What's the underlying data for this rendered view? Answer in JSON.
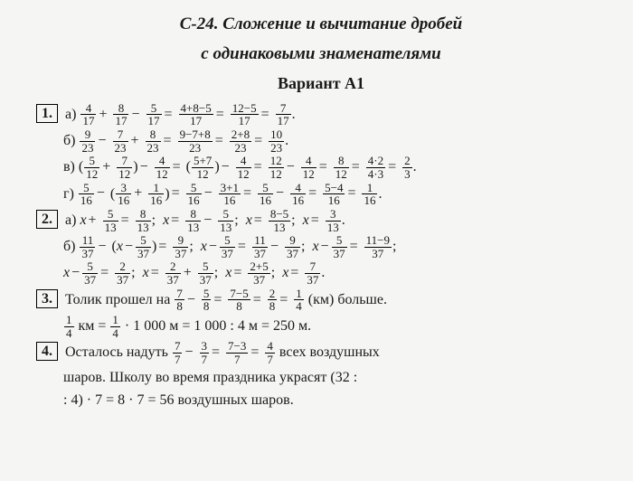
{
  "header": {
    "title_line1": "С-24. Сложение и вычитание дробей",
    "title_line2": "с одинаковыми знаменателями",
    "variant": "Вариант А1"
  },
  "p1": {
    "num": "1.",
    "a": {
      "label": "а)",
      "f1n": "4",
      "f1d": "17",
      "f2n": "8",
      "f2d": "17",
      "f3n": "5",
      "f3d": "17",
      "f4n": "4+8−5",
      "f4d": "17",
      "f5n": "12−5",
      "f5d": "17",
      "f6n": "7",
      "f6d": "17"
    },
    "b": {
      "label": "б)",
      "f1n": "9",
      "f1d": "23",
      "f2n": "7",
      "f2d": "23",
      "f3n": "8",
      "f3d": "23",
      "f4n": "9−7+8",
      "f4d": "23",
      "f5n": "2+8",
      "f5d": "23",
      "f6n": "10",
      "f6d": "23"
    },
    "v": {
      "label": "в)",
      "f1n": "5",
      "f1d": "12",
      "f2n": "7",
      "f2d": "12",
      "f3n": "4",
      "f3d": "12",
      "f4n": "5+7",
      "f4d": "12",
      "f5n": "4",
      "f5d": "12",
      "f6n": "12",
      "f6d": "12",
      "f7n": "4",
      "f7d": "12",
      "f8n": "8",
      "f8d": "12",
      "f9n": "4·2",
      "f9d": "4·3",
      "f10n": "2",
      "f10d": "3"
    },
    "g": {
      "label": "г)",
      "f1n": "5",
      "f1d": "16",
      "f2n": "3",
      "f2d": "16",
      "f3n": "1",
      "f3d": "16",
      "f4n": "5",
      "f4d": "16",
      "f5n": "3+1",
      "f5d": "16",
      "f6n": "5",
      "f6d": "16",
      "f7n": "4",
      "f7d": "16",
      "f8n": "5−4",
      "f8d": "16",
      "f9n": "1",
      "f9d": "16"
    }
  },
  "p2": {
    "num": "2.",
    "a": {
      "label": "а)",
      "f1n": "5",
      "f1d": "13",
      "f2n": "8",
      "f2d": "13",
      "f3n": "8",
      "f3d": "13",
      "f4n": "5",
      "f4d": "13",
      "f5n": "8−5",
      "f5d": "13",
      "f6n": "3",
      "f6d": "13"
    },
    "b": {
      "label": "б)",
      "f1n": "11",
      "f1d": "37",
      "f2n": "5",
      "f2d": "37",
      "f3n": "9",
      "f3d": "37",
      "f4n": "5",
      "f4d": "37",
      "f5n": "11",
      "f5d": "37",
      "f6n": "9",
      "f6d": "37",
      "f7n": "5",
      "f7d": "37",
      "f8n": "11−9",
      "f8d": "37",
      "f9n": "5",
      "f9d": "37",
      "f10n": "2",
      "f10d": "37",
      "f11n": "2",
      "f11d": "37",
      "f12n": "5",
      "f12d": "37",
      "f13n": "2+5",
      "f13d": "37",
      "f14n": "7",
      "f14d": "37"
    }
  },
  "p3": {
    "num": "3.",
    "t1": "Толик прошел на",
    "f1n": "7",
    "f1d": "8",
    "f2n": "5",
    "f2d": "8",
    "f3n": "7−5",
    "f3d": "8",
    "f4n": "2",
    "f4d": "8",
    "f5n": "1",
    "f5d": "4",
    "t2": "(км) больше.",
    "f6n": "1",
    "f6d": "4",
    "t3": "км =",
    "f7n": "1",
    "f7d": "4",
    "t4": "· 1 000 м = 1 000 : 4 м = 250 м."
  },
  "p4": {
    "num": "4.",
    "t1": "Осталось надуть",
    "f1n": "7",
    "f1d": "7",
    "f2n": "3",
    "f2d": "7",
    "f3n": "7−3",
    "f3d": "7",
    "f4n": "4",
    "f4d": "7",
    "t2": "всех воздушных",
    "t3": "шаров. Школу во время праздника украсят (32 :",
    "t4": ": 4) · 7 = 8 · 7 = 56 воздушных шаров."
  }
}
